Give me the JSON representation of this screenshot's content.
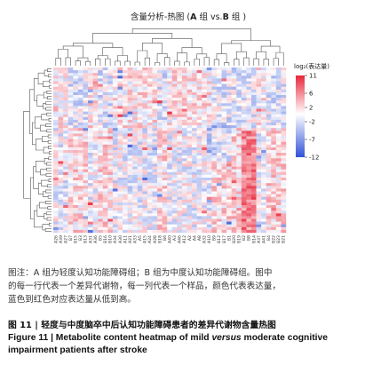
{
  "chart_data": {
    "type": "heatmap",
    "title_pre": "含量分析-热图 (",
    "title_a": "A",
    "title_mid": " 组 vs.",
    "title_b": "B",
    "title_post": " 组 )",
    "legend_title": "log₂(表达量)",
    "legend_ticks": [
      "11",
      "6",
      "2",
      "-2",
      "-7",
      "-12"
    ],
    "colorscale": {
      "min": -12,
      "max": 11,
      "low": "#2f52d8",
      "mid": "#ffffff",
      "high": "#e8263a"
    },
    "columns": [
      "A26",
      "A39",
      "A27",
      "B7",
      "B15",
      "B3",
      "B13",
      "A31",
      "A36",
      "B5",
      "B16",
      "B10",
      "A34",
      "A30",
      "A11",
      "A21",
      "A33",
      "A5",
      "A15",
      "A24",
      "A28",
      "B18",
      "B6",
      "A40",
      "A3",
      "A46",
      "A12",
      "A2",
      "A4",
      "A8",
      "A32",
      "A10",
      "B9",
      "B12",
      "B17",
      "B1",
      "B20",
      "B19",
      "B2",
      "B8",
      "B14",
      "A37",
      "A41",
      "B4",
      "B22",
      "B23",
      "B21"
    ],
    "group_a_label": "A",
    "group_b_label": "B"
  },
  "notes": {
    "line1": "图注：A 组为轻度认知功能障碍组；B 组为中度认知功能障碍组。图中",
    "line2": "的每一行代表一个差异代谢物，每一列代表一个样品，颜色代表表达量，",
    "line3": "蓝色到红色对应表达量从低到高。"
  },
  "caption": {
    "cn": "图 11 | 轻度与中度脑卒中后认知功能障碍患者的差异代谢物含量热图",
    "en_pre": "Figure 11  |  Metabolite content heatmap of mild ",
    "en_italic": "versus",
    "en_post": " moderate cognitive impairment patients after stroke"
  }
}
